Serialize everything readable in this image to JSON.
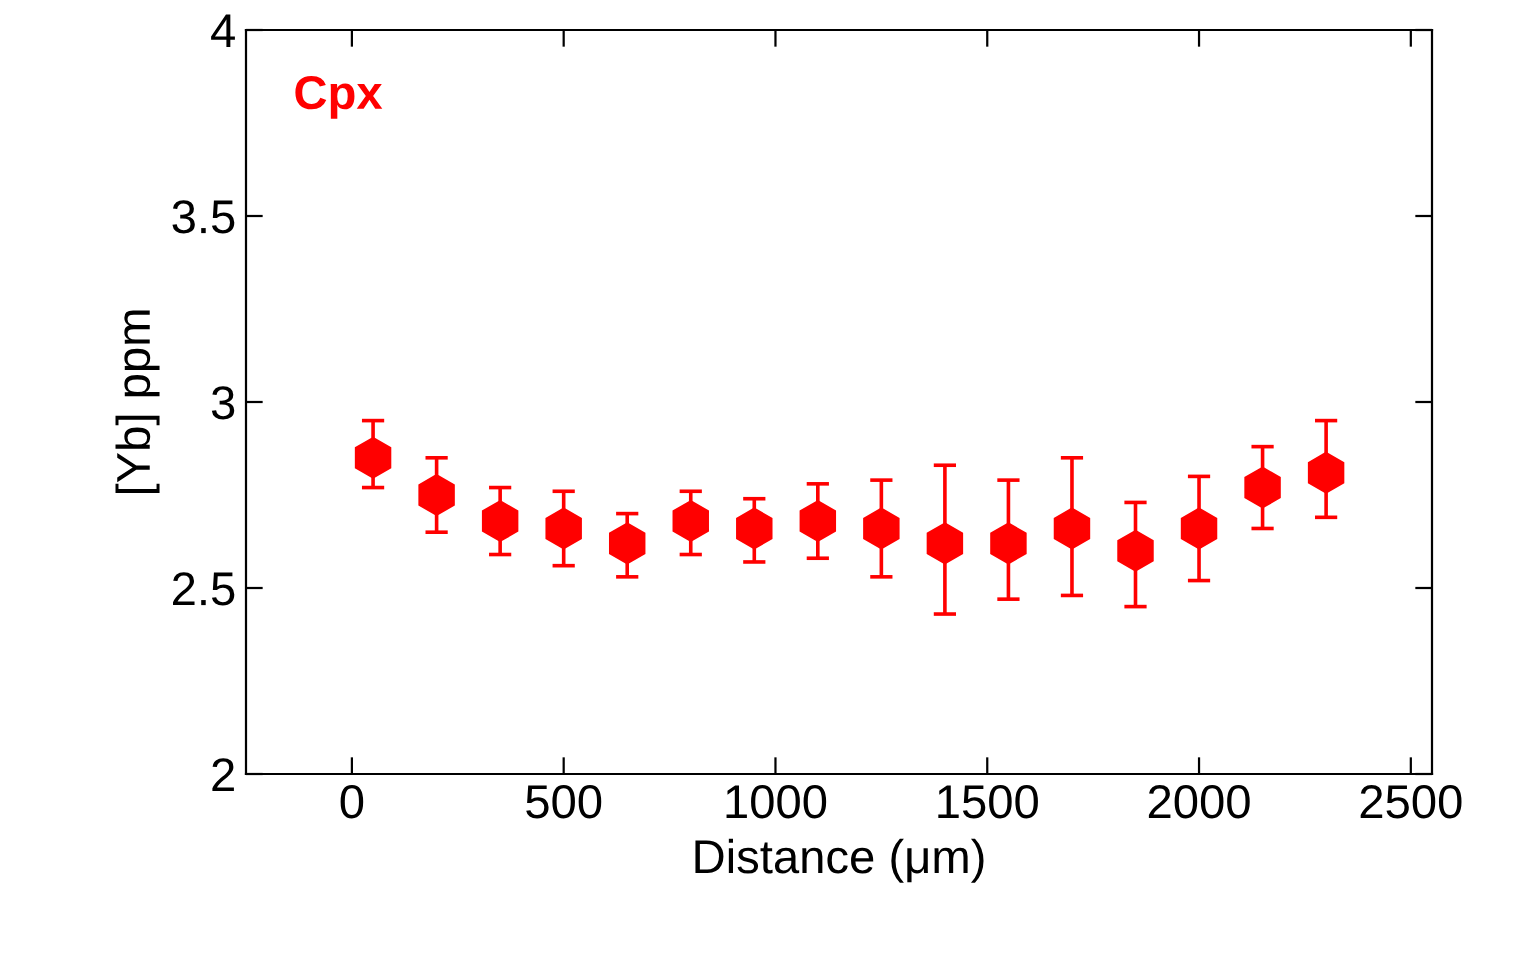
{
  "chart_data": {
    "type": "scatter",
    "xlabel": "Distance (μm)",
    "ylabel": "[Yb] ppm",
    "annotations": [
      "Cpx"
    ],
    "x": [
      50,
      200,
      350,
      500,
      650,
      800,
      950,
      1100,
      1250,
      1400,
      1550,
      1700,
      1850,
      2000,
      2150,
      2300
    ],
    "series": [
      {
        "color": "#ff0000",
        "values": [
          2.85,
          2.75,
          2.68,
          2.66,
          2.62,
          2.68,
          2.66,
          2.68,
          2.66,
          2.62,
          2.62,
          2.66,
          2.6,
          2.66,
          2.77,
          2.81
        ],
        "errors": [
          [
            2.77,
            2.95
          ],
          [
            2.65,
            2.85
          ],
          [
            2.59,
            2.77
          ],
          [
            2.56,
            2.76
          ],
          [
            2.53,
            2.7
          ],
          [
            2.59,
            2.76
          ],
          [
            2.57,
            2.74
          ],
          [
            2.58,
            2.78
          ],
          [
            2.53,
            2.79
          ],
          [
            2.43,
            2.83
          ],
          [
            2.47,
            2.79
          ],
          [
            2.48,
            2.85
          ],
          [
            2.45,
            2.73
          ],
          [
            2.52,
            2.8
          ],
          [
            2.66,
            2.88
          ],
          [
            2.69,
            2.95
          ]
        ]
      }
    ],
    "xlim": [
      -250,
      2550
    ],
    "ylim": [
      2,
      4
    ],
    "xticks": [
      0,
      500,
      1000,
      1500,
      2000,
      2500
    ],
    "yticks": [
      2,
      2.5,
      3,
      3.5,
      4
    ],
    "grid": false,
    "legend": false
  }
}
